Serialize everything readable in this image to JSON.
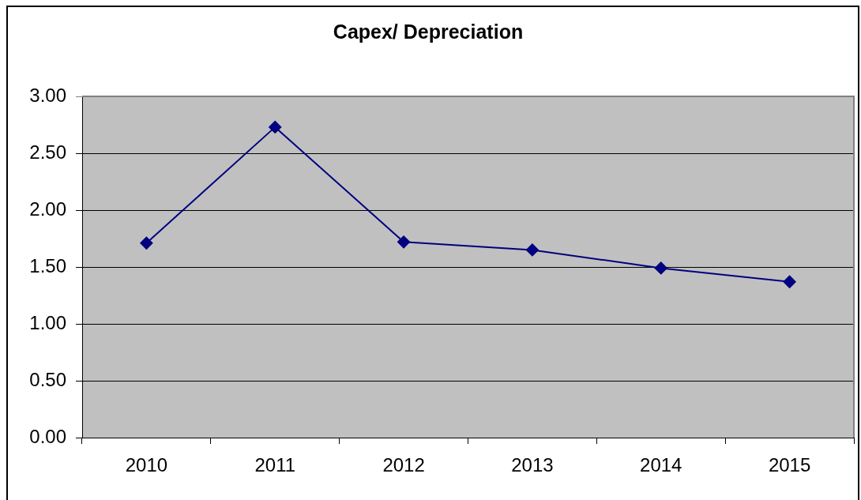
{
  "chart_data": {
    "type": "line",
    "title": "Capex/ Depreciation",
    "categories": [
      "2010",
      "2011",
      "2012",
      "2013",
      "2014",
      "2015"
    ],
    "series": [
      {
        "color": "#000080",
        "values": [
          1.71,
          2.73,
          1.72,
          1.65,
          1.49,
          1.37
        ]
      }
    ],
    "ylim": [
      0,
      3
    ],
    "yticks": [
      {
        "value": 0,
        "label": "0.00"
      },
      {
        "value": 0.5,
        "label": "0.50"
      },
      {
        "value": 1,
        "label": "1.00"
      },
      {
        "value": 1.5,
        "label": "1.50"
      },
      {
        "value": 2,
        "label": "2.00"
      },
      {
        "value": 2.5,
        "label": "2.50"
      },
      {
        "value": 3,
        "label": "3.00"
      }
    ],
    "grid": "y",
    "legend": false,
    "marker": "diamond",
    "line_style": "solid"
  }
}
